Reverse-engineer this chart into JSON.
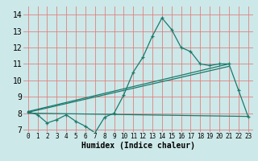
{
  "line1_x": [
    0,
    1,
    2,
    3,
    4,
    5,
    6,
    7,
    8,
    9,
    10,
    11,
    12,
    13,
    14,
    15,
    16,
    17,
    18,
    19,
    20,
    21,
    22,
    23
  ],
  "line1_y": [
    8.1,
    7.9,
    7.4,
    7.6,
    7.9,
    7.5,
    7.2,
    6.8,
    7.75,
    8.0,
    9.1,
    10.5,
    11.4,
    12.7,
    13.8,
    13.1,
    12.0,
    11.75,
    11.0,
    10.9,
    11.0,
    11.0,
    9.4,
    7.8
  ],
  "line2_x": [
    0,
    21
  ],
  "line2_y": [
    8.1,
    11.0
  ],
  "line3_x": [
    0,
    23
  ],
  "line3_y": [
    8.0,
    7.8
  ],
  "line4_x": [
    0,
    21
  ],
  "line4_y": [
    8.1,
    11.0
  ],
  "color": "#1a7a6e",
  "bg_color": "#cde8e8",
  "grid_color": "#e08080",
  "xlabel": "Humidex (Indice chaleur)",
  "xlim": [
    -0.5,
    23.5
  ],
  "ylim": [
    6.85,
    14.5
  ],
  "yticks": [
    7,
    8,
    9,
    10,
    11,
    12,
    13,
    14
  ],
  "xticks": [
    0,
    1,
    2,
    3,
    4,
    5,
    6,
    7,
    8,
    9,
    10,
    11,
    12,
    13,
    14,
    15,
    16,
    17,
    18,
    19,
    20,
    21,
    22,
    23
  ]
}
